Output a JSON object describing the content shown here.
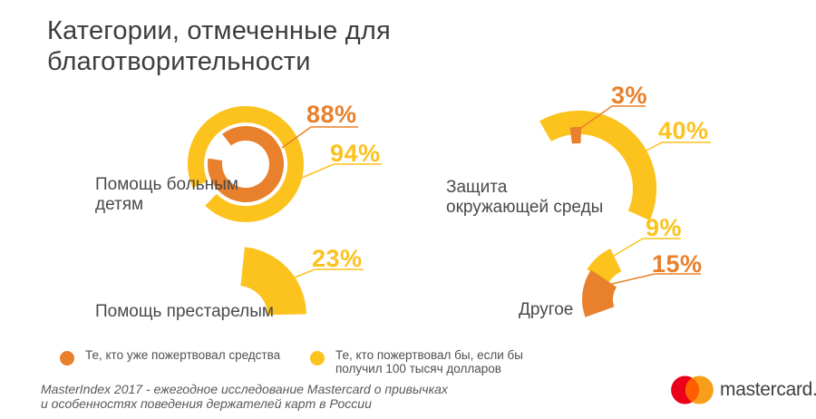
{
  "title": "Категории, отмеченные для благотворительности",
  "colors": {
    "orange": "#E8802C",
    "yellow": "#FCC21D",
    "title_text": "#3d3d3d",
    "label_text": "#4a4a4a",
    "footer_text": "#58595b",
    "mastercard_red": "#EB001B",
    "mastercard_orange": "#F79E1B",
    "mastercard_overlap": "#FF5F00"
  },
  "chart_data": [
    {
      "type": "donut",
      "category": "Помощь больным\nдетям",
      "unit": "%",
      "series": [
        {
          "name": "Те, кто уже пожертвовал средства",
          "value": 88,
          "label": "88%",
          "color": "#E8802C"
        },
        {
          "name": "Те, кто пожертвовал бы, если бы получил 100 тысяч долларов",
          "value": 94,
          "label": "94%",
          "color": "#FCC21D"
        }
      ]
    },
    {
      "type": "donut",
      "category": "Защита\nокружающей среды",
      "unit": "%",
      "series": [
        {
          "name": "Те, кто уже пожертвовал средства",
          "value": 3,
          "label": "3%",
          "color": "#E8802C"
        },
        {
          "name": "Те, кто пожертвовал бы, если бы получил 100 тысяч долларов",
          "value": 40,
          "label": "40%",
          "color": "#FCC21D"
        }
      ]
    },
    {
      "type": "donut",
      "category": "Помощь престарелым",
      "unit": "%",
      "series": [
        {
          "name": "Те, кто пожертвовал бы, если бы получил 100 тысяч долларов",
          "value": 23,
          "label": "23%",
          "color": "#FCC21D"
        }
      ]
    },
    {
      "type": "donut",
      "category": "Другое",
      "unit": "%",
      "series": [
        {
          "name": "Те, кто уже пожертвовал средства",
          "value": 15,
          "label": "15%",
          "color": "#E8802C"
        },
        {
          "name": "Те, кто пожертвовал бы, если бы получил 100 тысяч долларов",
          "value": 9,
          "label": "9%",
          "color": "#FCC21D"
        }
      ]
    }
  ],
  "legend": {
    "items": [
      {
        "label": "Те, кто уже пожертвовал средства",
        "color": "#E8802C"
      },
      {
        "label": "Те, кто пожертвовал бы, если бы\nполучил 100 тысяч долларов",
        "color": "#FCC21D"
      }
    ]
  },
  "footer": {
    "source": "MasterIndex 2017 - ежегодное исследование Mastercard о привычках\nи особенностях поведения держателей карт в России"
  },
  "logo": {
    "wordmark": "mastercard."
  }
}
